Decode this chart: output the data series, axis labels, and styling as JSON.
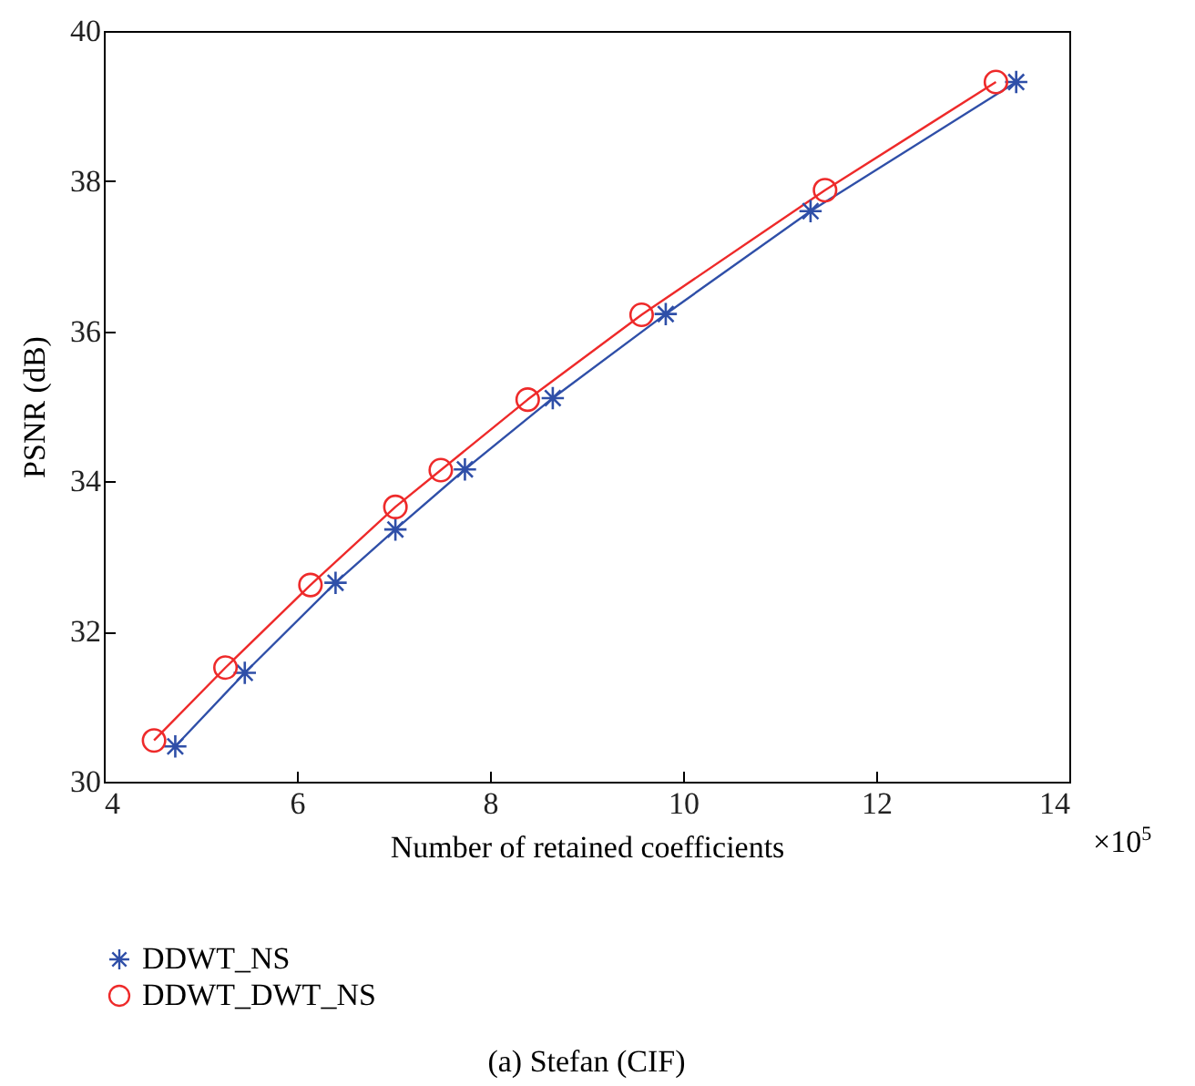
{
  "chart_data": {
    "type": "line",
    "title": "(a) Stefan (CIF)",
    "xlabel": "Number of retained coefficients",
    "ylabel": "PSNR (dB)",
    "xlim": [
      4,
      14
    ],
    "xticks": [
      4,
      6,
      8,
      10,
      12,
      14
    ],
    "ylim": [
      30,
      40
    ],
    "yticks": [
      30,
      32,
      34,
      36,
      38,
      40
    ],
    "grid": false,
    "legend": "bottom left",
    "line_style": "solid",
    "annotations": [
      "×10$^{5}$"
    ],
    "series": [
      {
        "name": "DDWT_NS",
        "color": "#2f4fa8",
        "marker": "cross",
        "x": [
          4.74,
          5.46,
          6.4,
          7.02,
          7.74,
          8.65,
          9.82,
          11.32,
          13.45
        ],
        "values": [
          30.47,
          31.45,
          32.65,
          33.36,
          34.16,
          35.11,
          36.23,
          37.6,
          39.32
        ]
      },
      {
        "name": "DDWT_DWT_NS",
        "color": "#ee2a2a",
        "marker": "circle",
        "x": [
          4.52,
          5.26,
          6.14,
          7.02,
          7.49,
          8.39,
          9.57,
          11.47,
          13.24
        ],
        "values": [
          30.55,
          31.52,
          32.62,
          33.66,
          34.15,
          35.09,
          36.22,
          37.88,
          39.32
        ]
      }
    ]
  }
}
